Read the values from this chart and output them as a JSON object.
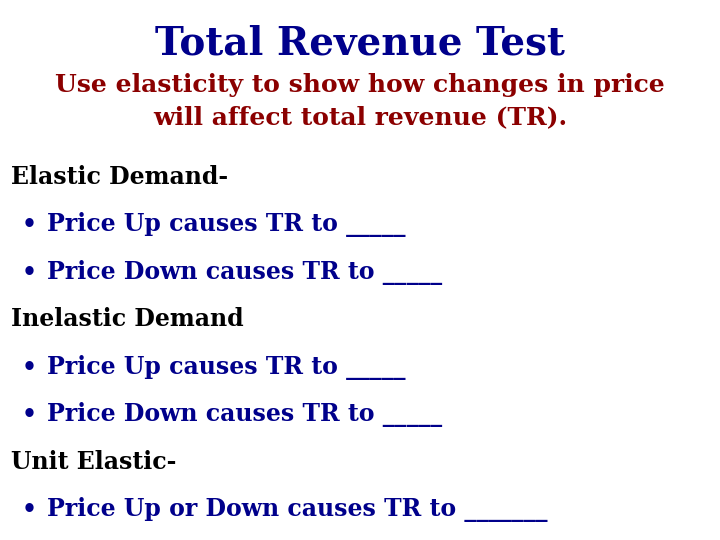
{
  "title": "Total Revenue Test",
  "title_color": "#00008B",
  "title_fontsize": 28,
  "subtitle_line1": "Use elasticity to show how changes in price",
  "subtitle_line2": "will affect total revenue (TR).",
  "subtitle_color": "#8B0000",
  "subtitle_fontsize": 18,
  "background_color": "#FFFFFF",
  "body_fontsize": 17,
  "black_color": "#000000",
  "blue_color": "#00008B",
  "body_items": [
    {
      "text": "Elastic Demand-",
      "indent": false,
      "color": "#000000"
    },
    {
      "text": "Price Up causes TR to _____",
      "indent": true,
      "color": "#00008B"
    },
    {
      "text": "Price Down causes TR to _____",
      "indent": true,
      "color": "#00008B"
    },
    {
      "text": "Inelastic Demand",
      "indent": false,
      "color": "#000000"
    },
    {
      "text": "Price Up causes TR to _____",
      "indent": true,
      "color": "#00008B"
    },
    {
      "text": "Price Down causes TR to _____",
      "indent": true,
      "color": "#00008B"
    },
    {
      "text": "Unit Elastic-",
      "indent": false,
      "color": "#000000"
    },
    {
      "text": "Price Up or Down causes TR to _______",
      "indent": true,
      "color": "#00008B"
    }
  ]
}
